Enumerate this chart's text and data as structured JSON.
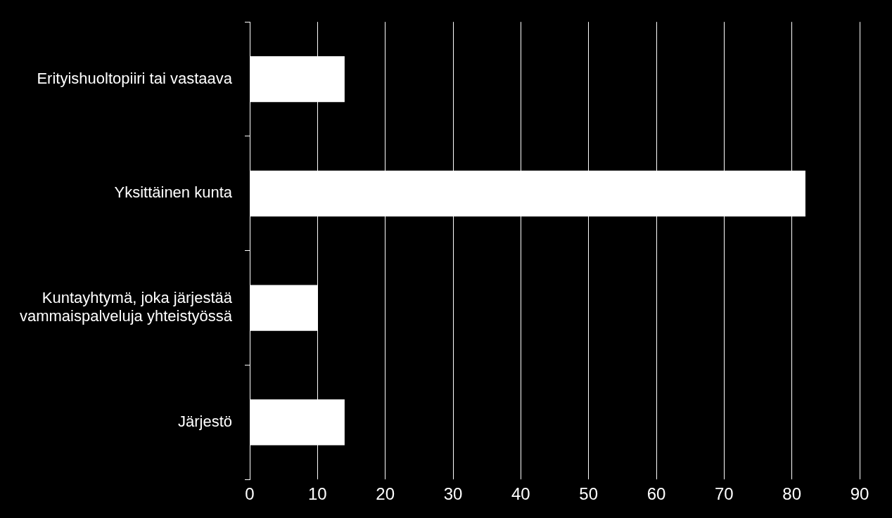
{
  "chart_data": {
    "type": "bar",
    "orientation": "horizontal",
    "categories": [
      "Erityishuoltopiiri tai vastaava",
      "Yksittäinen kunta",
      "Kuntayhtymä, joka järjestää vammaispalveluja yhteistyössä",
      "Järjestö"
    ],
    "values": [
      14,
      82,
      10,
      14
    ],
    "color": "#ffffff",
    "xlim": [
      0,
      90
    ],
    "xticks": [
      0,
      10,
      20,
      30,
      40,
      50,
      60,
      70,
      80,
      90
    ],
    "grid": "x",
    "legend": false
  }
}
